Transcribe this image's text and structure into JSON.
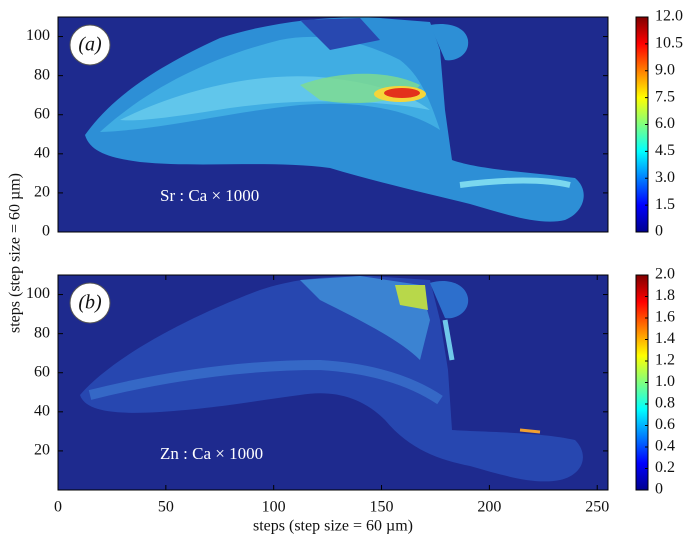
{
  "chart_data": [
    {
      "type": "heatmap",
      "panel_label": "(a)",
      "annotation": "Sr : Ca × 1000",
      "ylabel": "steps (step size = 60 µm)",
      "xlim": [
        0,
        255
      ],
      "ylim": [
        0,
        110
      ],
      "yticks": [
        0,
        20,
        40,
        60,
        80,
        100
      ],
      "colormap": "jet",
      "clim": [
        0,
        12
      ],
      "cticks": [
        0,
        1.5,
        3,
        4.5,
        6,
        7.5,
        9,
        10.5,
        12
      ],
      "cticks_labels": [
        "0",
        "1.5",
        "3.0",
        "4.5",
        "6.0",
        "7.5",
        "9.0",
        "10.5",
        "12.0"
      ]
    },
    {
      "type": "heatmap",
      "panel_label": "(b)",
      "annotation": "Zn : Ca × 1000",
      "xlabel": "steps (step size = 60 µm)",
      "xlim": [
        0,
        255
      ],
      "ylim": [
        0,
        110
      ],
      "xticks": [
        0,
        50,
        100,
        150,
        200,
        250
      ],
      "yticks": [
        20,
        40,
        60,
        80,
        100
      ],
      "colormap": "jet",
      "clim": [
        0,
        2
      ],
      "cticks": [
        0,
        0.2,
        0.4,
        0.6,
        0.8,
        1,
        1.2,
        1.4,
        1.6,
        1.8,
        2
      ],
      "cticks_labels": [
        "0",
        "0.2",
        "0.4",
        "0.6",
        "0.8",
        "1.0",
        "1.2",
        "1.4",
        "1.6",
        "1.8",
        "2.0"
      ]
    }
  ]
}
